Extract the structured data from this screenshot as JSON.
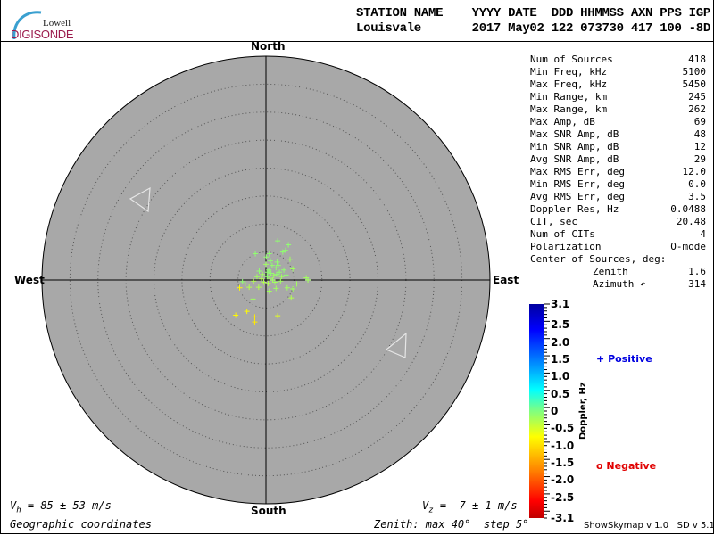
{
  "header": {
    "logo_top": "Lowell",
    "logo_bottom": "DIGISONDE",
    "labels_line": "STATION NAME    YYYY DATE  DDD HHMMSS AXN PPS IGP",
    "values_line": "Louisvale       2017 May02 122 073730 417 100 -8D"
  },
  "directions": {
    "north": "North",
    "south": "South",
    "east": "East",
    "west": "West"
  },
  "stats": [
    {
      "label": "Num of Sources",
      "value": "418"
    },
    {
      "label": "Min Freq, kHz",
      "value": "5100"
    },
    {
      "label": "Max Freq, kHz",
      "value": "5450"
    },
    {
      "label": "Min Range, km",
      "value": "245"
    },
    {
      "label": "Max Range, km",
      "value": "262"
    },
    {
      "label": "Max Amp, dB",
      "value": "69"
    },
    {
      "label": "Max SNR Amp, dB",
      "value": "48"
    },
    {
      "label": "Min SNR Amp, dB",
      "value": "12"
    },
    {
      "label": "Avg SNR Amp, dB",
      "value": "29"
    },
    {
      "label": "Max RMS Err, deg",
      "value": "12.0"
    },
    {
      "label": "Min RMS Err, deg",
      "value": "0.0"
    },
    {
      "label": "Avg RMS Err, deg",
      "value": "3.5"
    },
    {
      "label": "Doppler Res, Hz",
      "value": "0.0488"
    },
    {
      "label": "CIT, sec",
      "value": "20.48"
    },
    {
      "label": "Num of CITs",
      "value": "4"
    },
    {
      "label": "Polarization",
      "value": "O-mode"
    }
  ],
  "center": {
    "title": "Center of Sources, deg:",
    "zenith_label": "Zenith",
    "zenith": "1.6",
    "azimuth_label": "Azimuth ↶",
    "azimuth": "314"
  },
  "footer": {
    "vh_sym": "V",
    "vh_sub": "h",
    "vh_text": " = 85 ± 53 m/s",
    "vz_sym": "V",
    "vz_sub": "z",
    "vz_text": " = -7 ± 1 m/s",
    "coords": "Geographic coordinates",
    "zenith_info": "Zenith: max 40°  step 5°",
    "version": "ShowSkymap v 1.0   SD v 5.1"
  },
  "colorbar": {
    "title": "Doppler, Hz",
    "range": [
      -3.1,
      3.1
    ],
    "ticks": [
      "3.1",
      "2.5",
      "2.0",
      "1.5",
      "1.0",
      "0.5",
      "0",
      "-0.5",
      "-1.0",
      "-1.5",
      "-2.0",
      "-2.5",
      "-3.1"
    ],
    "tick_values": [
      3.1,
      2.5,
      2.0,
      1.5,
      1.0,
      0.5,
      0,
      -0.5,
      -1.0,
      -1.5,
      -2.0,
      -2.5,
      -3.1
    ]
  },
  "legend": {
    "positive": "Positive",
    "negative": "Negative",
    "positive_color": "#0000e0",
    "negative_color": "#e00000",
    "positive_marker": "+",
    "negative_marker": "o"
  },
  "colors": {
    "plot_bg": "#a8a8a8",
    "ring": "#555555"
  },
  "chart_data": {
    "type": "scatter",
    "projection": "polar-skymap",
    "zenith_max_deg": 40,
    "zenith_step_deg": 5,
    "axes_units": "degrees east / north of zenith",
    "points": [
      [
        2.1,
        7.0,
        0.1
      ],
      [
        4.0,
        6.3,
        0.1
      ],
      [
        3.5,
        5.3,
        0.1
      ],
      [
        3.0,
        5.0,
        0.1
      ],
      [
        -1.9,
        4.7,
        0.1
      ],
      [
        0.6,
        4.7,
        0.1
      ],
      [
        0.05,
        4.1,
        0.1
      ],
      [
        4.3,
        3.7,
        0.2
      ],
      [
        4.8,
        2.0,
        0.2
      ],
      [
        7.2,
        0.4,
        0.2
      ],
      [
        7.5,
        0.0,
        0.2
      ],
      [
        -4.2,
        -0.3,
        0.1
      ],
      [
        -4.7,
        -1.4,
        0.8
      ],
      [
        -3.7,
        -0.7,
        0.2
      ],
      [
        -3.0,
        -1.3,
        0.3
      ],
      [
        -1.3,
        -1.3,
        0.3
      ],
      [
        0.6,
        -2.0,
        0.2
      ],
      [
        1.8,
        -1.5,
        0.2
      ],
      [
        3.8,
        -1.4,
        0.2
      ],
      [
        4.8,
        -1.6,
        0.2
      ],
      [
        5.5,
        -0.7,
        0.2
      ],
      [
        4.5,
        -3.2,
        0.3
      ],
      [
        -2.3,
        -3.4,
        0.2
      ],
      [
        -3.4,
        -5.6,
        0.8
      ],
      [
        -5.4,
        -6.3,
        0.8
      ],
      [
        -2.0,
        -6.6,
        0.9
      ],
      [
        -2.0,
        -7.5,
        0.9
      ],
      [
        2.1,
        -6.4,
        0.6
      ],
      [
        0.9,
        1.2,
        0.1
      ],
      [
        0.5,
        1.8,
        0.1
      ],
      [
        1.4,
        0.8,
        0.2
      ],
      [
        0.2,
        0.6,
        0.1
      ],
      [
        1.8,
        2.2,
        0.1
      ],
      [
        -0.6,
        1.0,
        0.2
      ],
      [
        2.4,
        1.4,
        0.1
      ],
      [
        1.1,
        2.6,
        0.1
      ],
      [
        0.0,
        2.8,
        0.2
      ],
      [
        -1.2,
        1.6,
        0.1
      ],
      [
        2.8,
        0.6,
        0.2
      ],
      [
        1.6,
        -0.4,
        0.2
      ],
      [
        0.4,
        -0.6,
        0.3
      ],
      [
        -0.8,
        0.2,
        0.3
      ],
      [
        3.2,
        1.8,
        0.1
      ],
      [
        2.0,
        3.2,
        0.1
      ],
      [
        -1.6,
        0.6,
        0.2
      ],
      [
        0.8,
        3.4,
        0.1
      ],
      [
        1.2,
        0.0,
        0.2
      ],
      [
        2.6,
        -0.2,
        0.2
      ],
      [
        -0.4,
        -0.4,
        0.3
      ],
      [
        3.6,
        0.9,
        0.1
      ],
      [
        0.7,
        0.3,
        0.2
      ],
      [
        1.9,
        1.0,
        0.1
      ],
      [
        -2.2,
        -0.2,
        0.3
      ],
      [
        0.3,
        1.4,
        0.1
      ],
      [
        2.2,
        2.6,
        0.1
      ]
    ]
  }
}
